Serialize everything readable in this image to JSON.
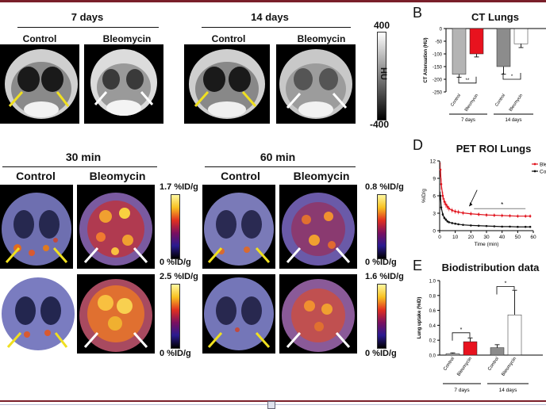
{
  "ct_section": {
    "time_labels": [
      "7 days",
      "14 days"
    ],
    "group_labels": [
      "Control",
      "Bleomycin",
      "Control",
      "Bleomycin"
    ],
    "colorbar": {
      "max": "400",
      "min": "-400",
      "unit": "HU"
    }
  },
  "pet_section": {
    "time_labels": [
      "30 min",
      "60 min"
    ],
    "group_labels": [
      "Control",
      "Bleomycin",
      "Control",
      "Bleomycin"
    ],
    "colorbars": [
      {
        "max": "1.7 %ID/g",
        "min": "0 %ID/g"
      },
      {
        "max": "0.8 %ID/g",
        "min": "0 %ID/g"
      },
      {
        "max": "2.5 %ID/g",
        "min": "0 %ID/g"
      },
      {
        "max": "1.6 %ID/g",
        "min": "0 %ID/g"
      }
    ]
  },
  "panel_b": {
    "letter": "B",
    "chart_data": {
      "type": "bar",
      "title": "CT Lungs",
      "ylabel": "CT Attenuation (HU)",
      "ylim": [
        -250,
        0
      ],
      "yticks": [
        "0",
        "-50",
        "-100",
        "-150",
        "-200",
        "-250"
      ],
      "categories": [
        "Control",
        "Bleomycin",
        "Control",
        "Bleomycin"
      ],
      "groups": [
        "7 days",
        "14 days"
      ],
      "values": [
        -180,
        -100,
        -150,
        -60
      ],
      "errors": [
        12,
        12,
        30,
        15
      ],
      "significance": [
        "**",
        "*"
      ],
      "colors": [
        "#b4b4b4",
        "#e8121e",
        "#8c8c8c",
        "#a01818"
      ]
    }
  },
  "panel_d": {
    "letter": "D",
    "chart_data": {
      "type": "line",
      "title": "PET ROI Lungs",
      "xlabel": "Time (min)",
      "ylabel": "%ID/g",
      "xlim": [
        0,
        60
      ],
      "ylim": [
        0,
        12
      ],
      "xticks": [
        "0",
        "10",
        "20",
        "30",
        "40",
        "50",
        "60"
      ],
      "yticks": [
        "0",
        "3",
        "6",
        "9",
        "12"
      ],
      "series": [
        {
          "name": "Bleomycin",
          "color": "#e0101a",
          "x": [
            0.5,
            1,
            2,
            3,
            4,
            5,
            6,
            8,
            10,
            12,
            15,
            20,
            25,
            30,
            35,
            40,
            45,
            50,
            55,
            58
          ],
          "y": [
            10.5,
            8,
            6,
            5,
            4.5,
            4.1,
            3.8,
            3.5,
            3.3,
            3.2,
            3.05,
            2.9,
            2.8,
            2.7,
            2.65,
            2.6,
            2.55,
            2.5,
            2.5,
            2.5
          ]
        },
        {
          "name": "Control",
          "color": "#111111",
          "x": [
            0.5,
            1,
            2,
            3,
            4,
            5,
            6,
            8,
            10,
            12,
            15,
            20,
            25,
            30,
            35,
            40,
            45,
            50,
            55,
            58
          ],
          "y": [
            6,
            4,
            2.8,
            2.2,
            1.9,
            1.6,
            1.45,
            1.3,
            1.2,
            1.1,
            1.0,
            0.9,
            0.85,
            0.8,
            0.75,
            0.7,
            0.7,
            0.65,
            0.65,
            0.65
          ]
        }
      ],
      "annotation": "*"
    }
  },
  "panel_e": {
    "letter": "E",
    "chart_data": {
      "type": "bar",
      "title": "Biodistribution data",
      "ylabel": "Lung uptake (%ID)",
      "ylim": [
        0,
        1.0
      ],
      "yticks": [
        "0.0",
        "0.2",
        "0.4",
        "0.6",
        "0.8",
        "1.0"
      ],
      "categories": [
        "Control",
        "Bleomycin",
        "Control",
        "Bleomycin"
      ],
      "groups": [
        "7 days",
        "14 days"
      ],
      "values": [
        0.02,
        0.18,
        0.1,
        0.54
      ],
      "errors": [
        0.01,
        0.05,
        0.04,
        0.33
      ],
      "significance": [
        "*",
        "*"
      ],
      "colors": [
        "#b4b4b4",
        "#e8121e",
        "#8c8c8c",
        "#a01818"
      ]
    }
  }
}
